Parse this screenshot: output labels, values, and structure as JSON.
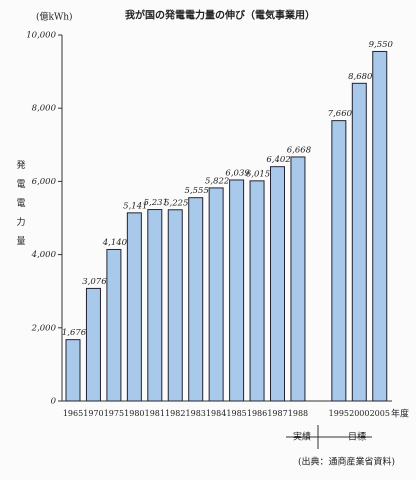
{
  "chart_data": {
    "type": "bar",
    "title": "我が国の発電電力量の伸び（電気事業用）",
    "y_unit": "(億kWh)",
    "y_label": "発電電力量",
    "x_label": "年度",
    "categories": [
      "1965",
      "1970",
      "1975",
      "1980",
      "1981",
      "1982",
      "1983",
      "1984",
      "1985",
      "1986",
      "1987",
      "1988",
      null,
      "1995",
      "2000",
      "2005"
    ],
    "values": [
      1676,
      3076,
      4140,
      5141,
      5231,
      5225,
      5555,
      5822,
      6039,
      6015,
      6402,
      6668,
      null,
      7660,
      8680,
      9550
    ],
    "value_labels": [
      "1,676",
      "3,076",
      "4,140",
      "5,141",
      "5,231",
      "5,225",
      "5,555",
      "5,822",
      "6,039",
      "6,015",
      "6,402",
      "6,668",
      null,
      "7,660",
      "8,680",
      "9,550"
    ],
    "color": "#a9c9ea",
    "ylim": [
      0,
      10000
    ],
    "yticks": [
      0,
      {
        "value": 2000,
        "label": "2,000"
      },
      {
        "value": 4000,
        "label": "4,000"
      },
      {
        "value": 6000,
        "label": "6,000"
      },
      {
        "value": 8000,
        "label": "8,000"
      },
      {
        "value": 10000,
        "label": "10,000"
      }
    ],
    "annotations": {
      "actual": "実績",
      "target": "目標",
      "source": "(出典：通商産業省資料)"
    }
  }
}
